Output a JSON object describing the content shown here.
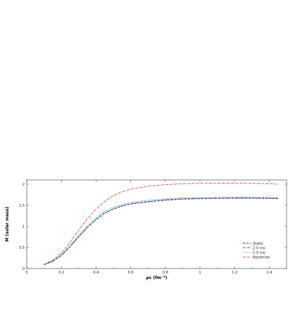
{
  "chart_data": {
    "type": "line",
    "xlabel": "ρc (fm⁻³)",
    "ylabel": "M (solar mass)",
    "xlim": [
      0,
      1.5
    ],
    "ylim": [
      0,
      2.1
    ],
    "x_ticks": [
      0,
      0.2,
      0.4,
      0.6,
      0.8,
      1,
      1.2,
      1.4
    ],
    "x_tick_labels": [
      "0",
      "0.2",
      "0.4",
      "0.6",
      "0.8",
      "1",
      "1.2",
      "1.4"
    ],
    "y_ticks": [
      0,
      0.5,
      1,
      1.5,
      2
    ],
    "y_tick_labels": [
      "0",
      "0.5",
      "1",
      "1.5",
      "2"
    ],
    "grid": false,
    "legend_position": "lower-right",
    "series": [
      {
        "name": "Static",
        "color": "#2b2b2b",
        "dash": "dashed",
        "x": [
          0.1,
          0.15,
          0.2,
          0.25,
          0.3,
          0.35,
          0.4,
          0.45,
          0.5,
          0.55,
          0.6,
          0.7,
          0.8,
          0.9,
          1.0,
          1.1,
          1.2,
          1.3,
          1.4,
          1.45
        ],
        "y": [
          0.09,
          0.17,
          0.31,
          0.52,
          0.75,
          0.97,
          1.16,
          1.31,
          1.41,
          1.48,
          1.53,
          1.58,
          1.62,
          1.645,
          1.655,
          1.66,
          1.665,
          1.665,
          1.66,
          1.655
        ]
      },
      {
        "name": "2.0 ms",
        "color": "#1f3fbf",
        "dash": "dash-dot",
        "x": [
          0.1,
          0.15,
          0.2,
          0.25,
          0.3,
          0.35,
          0.4,
          0.45,
          0.5,
          0.55,
          0.6,
          0.7,
          0.8,
          0.9,
          1.0,
          1.1,
          1.2,
          1.3,
          1.4,
          1.45
        ],
        "y": [
          0.09,
          0.17,
          0.31,
          0.52,
          0.76,
          0.98,
          1.17,
          1.32,
          1.42,
          1.49,
          1.54,
          1.59,
          1.63,
          1.655,
          1.665,
          1.67,
          1.675,
          1.675,
          1.67,
          1.665
        ]
      },
      {
        "name": "1.5 ms",
        "color": "#2e7d32",
        "dash": "dotted",
        "x": [
          0.1,
          0.15,
          0.2,
          0.25,
          0.3,
          0.35,
          0.4,
          0.45,
          0.5,
          0.55,
          0.6,
          0.7,
          0.8,
          0.9,
          1.0,
          1.1,
          1.2,
          1.3,
          1.4,
          1.45
        ],
        "y": [
          0.09,
          0.18,
          0.33,
          0.55,
          0.79,
          1.02,
          1.21,
          1.36,
          1.46,
          1.52,
          1.57,
          1.62,
          1.655,
          1.675,
          1.685,
          1.69,
          1.695,
          1.695,
          1.69,
          1.685
        ]
      },
      {
        "name": "Keplerian",
        "color": "#d0302b",
        "dash": "dash-dot",
        "x": [
          0.1,
          0.15,
          0.2,
          0.25,
          0.3,
          0.35,
          0.4,
          0.45,
          0.5,
          0.55,
          0.6,
          0.7,
          0.8,
          0.9,
          1.0,
          1.1,
          1.2,
          1.3,
          1.4,
          1.45
        ],
        "y": [
          0.1,
          0.2,
          0.37,
          0.62,
          0.91,
          1.18,
          1.41,
          1.59,
          1.73,
          1.82,
          1.88,
          1.95,
          1.99,
          2.01,
          2.02,
          2.025,
          2.025,
          2.02,
          2.01,
          2.0
        ]
      }
    ]
  }
}
